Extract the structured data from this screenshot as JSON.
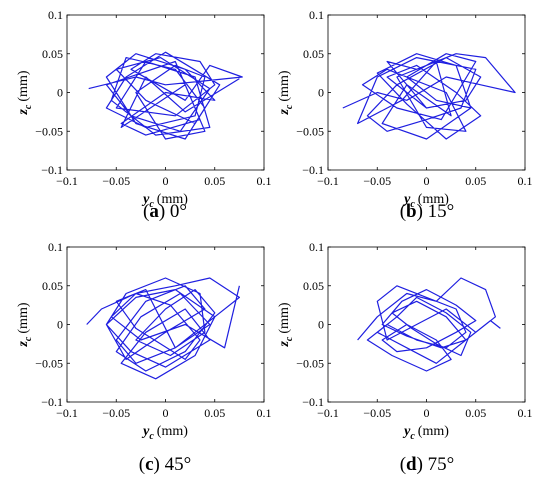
{
  "figure": {
    "trace_color": "#1f1fe0"
  },
  "chart_data": [
    {
      "type": "line",
      "caption": {
        "letter": "a",
        "angle": "0°"
      },
      "xlabel": {
        "symbol": "y",
        "subscript": "c",
        "unit": "(mm)"
      },
      "ylabel": {
        "symbol": "z",
        "subscript": "c",
        "unit": "(mm)"
      },
      "xlim": [
        -0.1,
        0.1
      ],
      "ylim": [
        -0.1,
        0.1
      ],
      "xticks": [
        -0.1,
        -0.05,
        0,
        0.05,
        0.1
      ],
      "yticks": [
        -0.1,
        -0.05,
        0,
        0.05,
        0.1
      ],
      "xtick_labels": [
        "−0.1",
        "−0.05",
        "0",
        "0.05",
        "0.1"
      ],
      "ytick_labels": [
        "−0.1",
        "−0.05",
        "0",
        "0.05",
        "0.1"
      ],
      "series": [
        {
          "x": [
            -0.078,
            -0.03,
            0.0,
            0.04,
            0.078,
            0.045,
            0.02,
            -0.035,
            -0.01,
            0.035,
            0.05,
            0.01,
            -0.05,
            -0.02,
            0.03,
            0.045,
            -0.01,
            -0.055,
            -0.04,
            0.01,
            0.04,
            0.02,
            -0.03,
            -0.06,
            -0.03,
            0.02,
            0.05,
            0.0,
            -0.045,
            -0.02,
            0.035,
            0.01,
            -0.06,
            -0.035,
            0.015,
            0.045,
            -0.005,
            -0.05,
            -0.02,
            0.03,
            0.055,
            0.0,
            -0.04,
            -0.06,
            -0.02,
            0.03,
            0.04,
            0.01,
            -0.03,
            0.0,
            0.04,
            0.02,
            -0.045,
            -0.02,
            0.02,
            0.075
          ],
          "y": [
            0.005,
            0.02,
            0.01,
            0.015,
            0.02,
            0.035,
            -0.01,
            0.03,
            0.05,
            0.04,
            0.01,
            -0.03,
            -0.02,
            0.04,
            0.02,
            -0.045,
            -0.055,
            -0.01,
            0.045,
            0.03,
            -0.02,
            -0.06,
            -0.04,
            0.02,
            0.05,
            0.03,
            -0.01,
            0.0,
            -0.04,
            -0.055,
            -0.035,
            0.04,
            0.01,
            -0.03,
            -0.05,
            0.005,
            0.045,
            0.03,
            -0.01,
            -0.04,
            0.01,
            0.052,
            0.02,
            -0.02,
            -0.045,
            -0.03,
            0.02,
            0.035,
            0.0,
            -0.06,
            -0.05,
            0.01,
            -0.045,
            0.02,
            -0.025,
            0.018
          ]
        }
      ]
    },
    {
      "type": "line",
      "caption": {
        "letter": "b",
        "angle": "15°"
      },
      "xlabel": {
        "symbol": "y",
        "subscript": "c",
        "unit": "(mm)"
      },
      "ylabel": {
        "symbol": "z",
        "subscript": "c",
        "unit": "(mm)"
      },
      "xlim": [
        -0.1,
        0.1
      ],
      "ylim": [
        -0.1,
        0.1
      ],
      "xticks": [
        -0.1,
        -0.05,
        0,
        0.05,
        0.1
      ],
      "yticks": [
        -0.1,
        -0.05,
        0,
        0.05,
        0.1
      ],
      "xtick_labels": [
        "−0.1",
        "−0.05",
        "0",
        "0.05",
        "0.1"
      ],
      "ytick_labels": [
        "−0.1",
        "−0.05",
        "0",
        "0.05",
        "0.1"
      ],
      "series": [
        {
          "x": [
            -0.085,
            -0.05,
            -0.02,
            0.02,
            0.055,
            0.09,
            0.06,
            0.03,
            -0.01,
            -0.04,
            0.0,
            0.04,
            0.055,
            0.02,
            -0.03,
            -0.06,
            -0.04,
            0.0,
            0.035,
            0.05,
            0.01,
            -0.025,
            -0.07,
            -0.05,
            -0.01,
            0.03,
            0.045,
            0.0,
            -0.045,
            -0.02,
            0.025,
            0.01,
            -0.03,
            0.0,
            0.04,
            0.02,
            -0.04,
            -0.065,
            -0.03,
            0.015,
            0.05,
            0.02,
            -0.02,
            0.01,
            0.045,
            0.03,
            -0.01,
            -0.05,
            -0.02,
            0.02,
            0.055,
            0.03,
            -0.01,
            -0.04,
            0.0
          ],
          "y": [
            -0.02,
            0.0,
            -0.01,
            0.02,
            0.01,
            0.0,
            0.045,
            0.05,
            0.03,
            0.04,
            -0.02,
            -0.01,
            0.02,
            0.045,
            0.01,
            -0.03,
            -0.05,
            -0.035,
            -0.02,
            0.03,
            0.04,
            -0.01,
            -0.04,
            0.02,
            0.045,
            0.035,
            -0.02,
            -0.06,
            -0.04,
            0.01,
            -0.03,
            0.04,
            0.02,
            -0.045,
            -0.05,
            0.0,
            0.03,
            0.01,
            -0.02,
            -0.035,
            0.04,
            0.05,
            0.02,
            -0.01,
            -0.02,
            0.035,
            0.05,
            0.025,
            -0.015,
            -0.06,
            -0.03,
            0.0,
            0.035,
            0.02,
            -0.02
          ]
        }
      ]
    },
    {
      "type": "line",
      "caption": {
        "letter": "c",
        "angle": "45°"
      },
      "xlabel": {
        "symbol": "y",
        "subscript": "c",
        "unit": "(mm)"
      },
      "ylabel": {
        "symbol": "z",
        "subscript": "c",
        "unit": "(mm)"
      },
      "xlim": [
        -0.1,
        0.1
      ],
      "ylim": [
        -0.1,
        0.1
      ],
      "xticks": [
        -0.1,
        -0.05,
        0,
        0.05,
        0.1
      ],
      "yticks": [
        -0.1,
        -0.05,
        0,
        0.05,
        0.1
      ],
      "xtick_labels": [
        "−0.1",
        "−0.05",
        "0",
        "0.05",
        "0.1"
      ],
      "ytick_labels": [
        "−0.1",
        "−0.05",
        "0",
        "0.05",
        "0.1"
      ],
      "series": [
        {
          "x": [
            -0.08,
            -0.065,
            -0.03,
            0.01,
            0.045,
            0.075,
            0.05,
            0.01,
            -0.03,
            -0.05,
            -0.02,
            0.02,
            0.04,
            0.0,
            -0.04,
            -0.06,
            -0.03,
            0.01,
            0.05,
            0.03,
            -0.01,
            -0.045,
            -0.02,
            0.02,
            0.045,
            0.0,
            -0.035,
            -0.06,
            -0.04,
            0.0,
            0.035,
            0.04,
            0.005,
            -0.03,
            0.0,
            0.03,
            0.05,
            0.02,
            -0.02,
            -0.05,
            -0.025,
            0.015,
            0.045,
            0.01,
            -0.02,
            -0.05,
            -0.03,
            0.02,
            0.035,
            0.005,
            -0.03,
            -0.055,
            -0.025,
            0.02,
            0.06,
            0.075
          ],
          "y": [
            0.0,
            0.02,
            0.04,
            0.05,
            0.06,
            0.035,
            0.01,
            -0.03,
            -0.05,
            -0.02,
            0.03,
            0.05,
            0.02,
            -0.01,
            -0.045,
            0.0,
            0.035,
            0.045,
            0.01,
            -0.04,
            -0.07,
            -0.05,
            -0.01,
            0.02,
            -0.02,
            -0.055,
            -0.035,
            0.0,
            0.04,
            0.06,
            0.04,
            -0.01,
            -0.04,
            -0.02,
            0.02,
            0.045,
            0.015,
            -0.035,
            -0.06,
            -0.035,
            0.01,
            0.04,
            0.0,
            -0.03,
            0.045,
            0.03,
            -0.005,
            -0.045,
            -0.02,
            0.025,
            0.04,
            0.01,
            -0.02,
            0.0,
            -0.03,
            0.05
          ]
        }
      ]
    },
    {
      "type": "line",
      "caption": {
        "letter": "d",
        "angle": "75°"
      },
      "xlabel": {
        "symbol": "y",
        "subscript": "c",
        "unit": "(mm)"
      },
      "ylabel": {
        "symbol": "z",
        "subscript": "c",
        "unit": "(mm)"
      },
      "xlim": [
        -0.1,
        0.1
      ],
      "ylim": [
        -0.1,
        0.1
      ],
      "xticks": [
        -0.1,
        -0.05,
        0,
        0.05,
        0.1
      ],
      "yticks": [
        -0.1,
        -0.05,
        0,
        0.05,
        0.1
      ],
      "xtick_labels": [
        "−0.1",
        "−0.05",
        "0",
        "0.05",
        "0.1"
      ],
      "ytick_labels": [
        "−0.1",
        "−0.05",
        "0",
        "0.05",
        "0.1"
      ],
      "series": [
        {
          "x": [
            -0.07,
            -0.05,
            -0.02,
            0.01,
            0.035,
            0.06,
            0.07,
            0.05,
            0.02,
            -0.01,
            -0.04,
            -0.05,
            -0.03,
            0.0,
            0.03,
            0.04,
            0.02,
            -0.01,
            -0.04,
            -0.06,
            -0.035,
            0.0,
            0.025,
            0.01,
            -0.02,
            -0.045,
            -0.03,
            0.0,
            0.03,
            0.05,
            0.03,
            0.0,
            -0.025,
            -0.045,
            -0.02,
            0.015,
            0.04,
            0.02,
            -0.01,
            -0.035,
            -0.015,
            0.01,
            0.035,
            0.045,
            0.02,
            -0.01,
            -0.03,
            -0.05,
            -0.02,
            0.01,
            0.04,
            0.065,
            0.075
          ],
          "y": [
            -0.02,
            0.01,
            0.04,
            0.03,
            0.06,
            0.045,
            0.01,
            -0.01,
            0.02,
            0.0,
            -0.02,
            0.03,
            0.05,
            0.035,
            0.02,
            -0.01,
            -0.03,
            -0.02,
            0.0,
            -0.02,
            -0.04,
            -0.06,
            -0.045,
            -0.02,
            0.0,
            -0.02,
            -0.035,
            -0.03,
            -0.01,
            0.005,
            0.025,
            0.045,
            0.03,
            0.0,
            -0.015,
            -0.03,
            -0.02,
            0.01,
            0.03,
            0.015,
            -0.005,
            -0.025,
            -0.04,
            -0.01,
            0.015,
            0.035,
            0.01,
            -0.01,
            -0.03,
            -0.05,
            -0.02,
            0.005,
            -0.005
          ]
        }
      ]
    }
  ]
}
